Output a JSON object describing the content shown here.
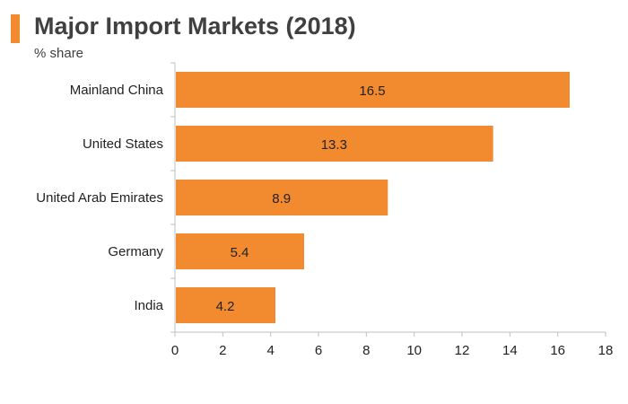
{
  "title": "Major Import Markets (2018)",
  "subtitle": "% share",
  "colors": {
    "accent": "#f28b30",
    "bar": "#f28b30",
    "axis": "#bfbfbf",
    "text": "#404040"
  },
  "chart_data": {
    "type": "bar",
    "orientation": "horizontal",
    "title": "Major Import Markets (2018)",
    "subtitle": "% share",
    "categories": [
      "Mainland China",
      "United States",
      "United Arab Emirates",
      "Germany",
      "India"
    ],
    "values": [
      16.5,
      13.3,
      8.9,
      5.4,
      4.2
    ],
    "data_labels": [
      "16.5",
      "13.3",
      "8.9",
      "5.4",
      "4.2"
    ],
    "xlim": [
      0,
      18
    ],
    "x_ticks": [
      0,
      2,
      4,
      6,
      8,
      10,
      12,
      14,
      16,
      18
    ],
    "grid": false,
    "legend": "none"
  }
}
